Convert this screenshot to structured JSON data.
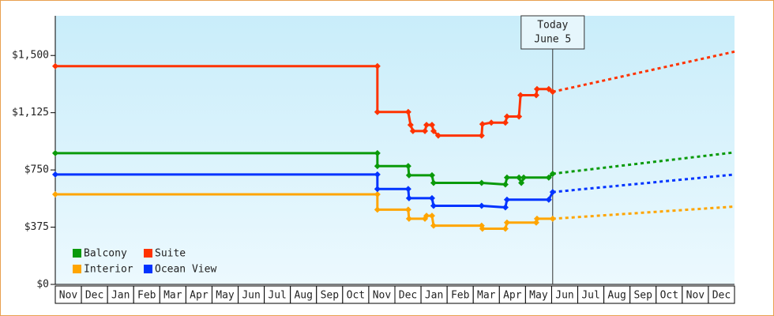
{
  "chart_data": {
    "type": "line",
    "categories": [
      "Nov",
      "Dec",
      "Jan",
      "Feb",
      "Mar",
      "Apr",
      "May",
      "Jun",
      "Jul",
      "Aug",
      "Sep",
      "Oct",
      "Nov",
      "Dec",
      "Jan",
      "Feb",
      "Mar",
      "Apr",
      "May",
      "Jun",
      "Jul",
      "Aug",
      "Sep",
      "Oct",
      "Nov",
      "Dec"
    ],
    "xlim": [
      0,
      26
    ],
    "ylim": [
      0,
      1760
    ],
    "yticks": [
      {
        "value": 0,
        "label": "$0"
      },
      {
        "value": 375,
        "label": "$375"
      },
      {
        "value": 750,
        "label": "$750"
      },
      {
        "value": 1125,
        "label": "$1,125"
      },
      {
        "value": 1500,
        "label": "$1,500"
      }
    ],
    "today": {
      "x": 19.04,
      "label": [
        "Today",
        "June 5"
      ]
    },
    "legend": "bottom-left",
    "series": [
      {
        "name": "Balcony",
        "color": "#0a9a0a",
        "x": [
          0,
          12.33,
          12.33,
          13.51,
          13.54,
          14.42,
          14.48,
          16.32,
          17.23,
          17.29,
          17.75,
          17.84,
          17.93,
          18.89,
          19.04
        ],
        "values": [
          860,
          860,
          775,
          775,
          715,
          715,
          665,
          665,
          655,
          700,
          700,
          665,
          700,
          700,
          725
        ],
        "forecast": {
          "x": [
            19.04,
            26
          ],
          "values": [
            725,
            865
          ]
        }
      },
      {
        "name": "Suite",
        "color": "#ff3300",
        "x": [
          0,
          12.33,
          12.33,
          13.51,
          13.6,
          13.69,
          14.15,
          14.21,
          14.42,
          14.48,
          14.66,
          16.32,
          16.35,
          16.69,
          17.23,
          17.29,
          17.75,
          17.81,
          18.41,
          18.44,
          18.89,
          19.04
        ],
        "values": [
          1430,
          1430,
          1130,
          1130,
          1045,
          1005,
          1005,
          1045,
          1045,
          1005,
          975,
          975,
          1050,
          1060,
          1060,
          1100,
          1100,
          1240,
          1240,
          1280,
          1280,
          1262
        ],
        "forecast": {
          "x": [
            19.04,
            26
          ],
          "values": [
            1262,
            1525
          ]
        }
      },
      {
        "name": "Interior",
        "color": "#ffa500",
        "x": [
          0,
          12.33,
          12.33,
          13.51,
          13.54,
          14.15,
          14.21,
          14.42,
          14.48,
          16.32,
          16.35,
          17.23,
          17.29,
          18.41,
          18.44,
          19.04
        ],
        "values": [
          590,
          590,
          490,
          490,
          430,
          430,
          450,
          450,
          385,
          385,
          365,
          365,
          405,
          405,
          430,
          430
        ],
        "forecast": {
          "x": [
            19.04,
            26
          ],
          "values": [
            430,
            510
          ]
        }
      },
      {
        "name": "Ocean View",
        "color": "#0033ff",
        "x": [
          0,
          12.33,
          12.33,
          13.51,
          13.54,
          14.42,
          14.48,
          16.32,
          17.23,
          17.29,
          18.89,
          19.04
        ],
        "values": [
          720,
          720,
          625,
          625,
          565,
          565,
          515,
          515,
          505,
          555,
          555,
          605
        ],
        "forecast": {
          "x": [
            19.04,
            26
          ],
          "values": [
            605,
            720
          ]
        }
      }
    ]
  }
}
